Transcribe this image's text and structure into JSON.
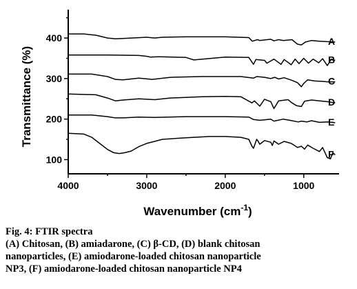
{
  "chart_data": {
    "type": "line",
    "xlabel_main": "Wavenumber (cm",
    "xlabel_sup": "-1",
    "xlabel_close": ")",
    "ylabel": "Transmittance (%)",
    "xlim": [
      4000,
      550
    ],
    "ylim": [
      65,
      470
    ],
    "xticks": [
      4000,
      3000,
      2000,
      1000
    ],
    "xtick_labels": [
      "4000",
      "3000",
      "2000",
      "1000"
    ],
    "yticks": [
      100,
      200,
      300,
      400
    ],
    "ytick_labels": [
      "100",
      "200",
      "300",
      "400"
    ],
    "grid": false,
    "series": [
      {
        "name": "A",
        "x": [
          4000,
          3800,
          3650,
          3500,
          3400,
          3300,
          3000,
          2900,
          2800,
          2500,
          2000,
          1700,
          1655,
          1590,
          1560,
          1420,
          1380,
          1320,
          1260,
          1150,
          1080,
          1030,
          980,
          900,
          800,
          700,
          600
        ],
        "y": [
          410,
          410,
          407,
          400,
          398,
          399,
          402,
          400,
          402,
          403,
          403,
          401,
          392,
          396,
          394,
          397,
          393,
          396,
          394,
          396,
          385,
          383,
          390,
          394,
          392,
          391,
          390
        ]
      },
      {
        "name": "B",
        "x": [
          4000,
          3500,
          3100,
          3000,
          2950,
          2850,
          2500,
          2400,
          2000,
          1700,
          1640,
          1610,
          1500,
          1470,
          1380,
          1290,
          1250,
          1160,
          1110,
          1060,
          1000,
          940,
          880,
          810,
          760,
          700,
          650,
          600
        ],
        "y": [
          358,
          358,
          357,
          355,
          353,
          354,
          352,
          346,
          353,
          352,
          335,
          347,
          345,
          338,
          348,
          335,
          347,
          334,
          348,
          337,
          350,
          338,
          348,
          339,
          349,
          332,
          348,
          345
        ]
      },
      {
        "name": "C",
        "x": [
          4000,
          3700,
          3500,
          3400,
          3300,
          3100,
          2930,
          2700,
          2300,
          2000,
          1800,
          1640,
          1600,
          1500,
          1420,
          1370,
          1320,
          1250,
          1155,
          1080,
          1030,
          1000,
          950,
          860,
          760,
          700,
          600
        ],
        "y": [
          311,
          311,
          305,
          298,
          297,
          301,
          298,
          303,
          305,
          305,
          305,
          301,
          305,
          303,
          300,
          303,
          299,
          302,
          296,
          290,
          280,
          288,
          297,
          294,
          293,
          292,
          292
        ]
      },
      {
        "name": "D",
        "x": [
          4000,
          3650,
          3500,
          3400,
          3300,
          3100,
          2900,
          2700,
          2300,
          2000,
          1800,
          1660,
          1630,
          1560,
          1500,
          1420,
          1380,
          1320,
          1200,
          1150,
          1090,
          1030,
          990,
          900,
          800,
          700,
          600
        ],
        "y": [
          262,
          260,
          252,
          245,
          247,
          250,
          248,
          252,
          255,
          256,
          255,
          240,
          245,
          232,
          249,
          243,
          226,
          245,
          248,
          240,
          233,
          231,
          244,
          247,
          245,
          243,
          240
        ]
      },
      {
        "name": "E",
        "x": [
          4000,
          3700,
          3500,
          3400,
          3300,
          3100,
          2900,
          2500,
          2000,
          1700,
          1640,
          1560,
          1420,
          1380,
          1260,
          1150,
          1070,
          1030,
          960,
          900,
          800,
          700,
          600
        ],
        "y": [
          210,
          210,
          206,
          203,
          203,
          205,
          204,
          206,
          206,
          205,
          199,
          197,
          200,
          195,
          200,
          196,
          193,
          195,
          193,
          196,
          192,
          193,
          191
        ]
      },
      {
        "name": "F",
        "x": [
          4000,
          3800,
          3700,
          3600,
          3500,
          3420,
          3350,
          3280,
          3200,
          3100,
          3000,
          2900,
          2800,
          2500,
          2200,
          2000,
          1800,
          1700,
          1660,
          1640,
          1600,
          1580,
          1560,
          1500,
          1420,
          1400,
          1380,
          1320,
          1250,
          1160,
          1080,
          1030,
          990,
          950,
          880,
          800,
          760,
          700,
          660,
          630,
          600
        ],
        "y": [
          165,
          163,
          155,
          140,
          125,
          117,
          115,
          117,
          121,
          132,
          140,
          145,
          150,
          154,
          157,
          157,
          155,
          150,
          133,
          128,
          150,
          145,
          138,
          147,
          143,
          135,
          146,
          138,
          145,
          140,
          130,
          133,
          126,
          136,
          128,
          120,
          130,
          105,
          102,
          117,
          112
        ]
      }
    ]
  },
  "caption": {
    "line1": "Fig. 4: FTIR spectra",
    "line2": "(A) Chitosan, (B) amiadarone, (C) β-CD, (D) blank chitosan",
    "line3": "nanoparticles, (E) amiodarone-loaded chitosan nanoparticle",
    "line4": "NP3, (F) amiodarone-loaded chitosan nanoparticle NP4"
  },
  "colors": {
    "line": "#000000",
    "background": "#ffffff"
  }
}
